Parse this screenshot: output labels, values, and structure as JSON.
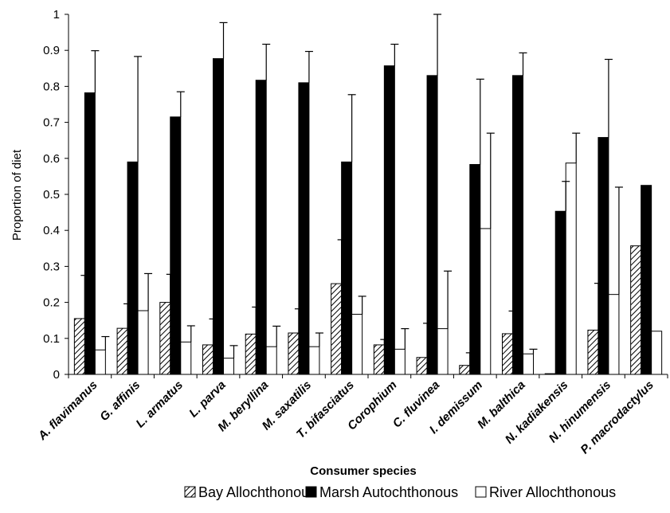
{
  "chart_data": {
    "type": "bar",
    "xlabel": "Consumer species",
    "ylabel": "Proportion of diet",
    "ylim": [
      0,
      1
    ],
    "yticks": [
      "0",
      "0.1",
      "0.2",
      "0.3",
      "0.4",
      "0.5",
      "0.6",
      "0.7",
      "0.8",
      "0.9",
      "1"
    ],
    "legend_position": "bottom",
    "grid": false,
    "categories": [
      "A. flavimanus",
      "G. affinis",
      "L. armatus",
      "L. parva",
      "M. beryllina",
      "M. saxatilis",
      "T. bifasciatus",
      "Corophium",
      "C. fluvinea",
      "I. demissum",
      "M. balthica",
      "N. kadiakensis",
      "N. hinumensis",
      "P. macrodactylus"
    ],
    "series": [
      {
        "name": "Bay Allochthonous",
        "pattern": "hatched",
        "color": "#000000",
        "values": [
          0.155,
          0.128,
          0.2,
          0.082,
          0.112,
          0.115,
          0.252,
          0.082,
          0.047,
          0.025,
          0.113,
          0.002,
          0.123,
          0.357
        ],
        "errors": [
          0.12,
          0.068,
          0.078,
          0.072,
          0.075,
          0.067,
          0.122,
          0.015,
          0.095,
          0.035,
          0.063,
          0.0,
          0.13,
          0.0
        ]
      },
      {
        "name": "Marsh Autochthonous",
        "pattern": "solid",
        "color": "#000000",
        "values": [
          0.782,
          0.59,
          0.715,
          0.877,
          0.817,
          0.81,
          0.59,
          0.857,
          0.83,
          0.583,
          0.83,
          0.453,
          0.658,
          0.525
        ],
        "errors": [
          0.117,
          0.293,
          0.07,
          0.1,
          0.1,
          0.087,
          0.187,
          0.06,
          0.19,
          0.237,
          0.063,
          0.083,
          0.217,
          0.0
        ]
      },
      {
        "name": "River Allochthonous",
        "pattern": "open",
        "color": "#ffffff",
        "values": [
          0.068,
          0.177,
          0.09,
          0.045,
          0.077,
          0.077,
          0.167,
          0.07,
          0.127,
          0.405,
          0.057,
          0.587,
          0.222,
          0.12
        ],
        "errors": [
          0.037,
          0.103,
          0.045,
          0.035,
          0.057,
          0.038,
          0.05,
          0.057,
          0.16,
          0.265,
          0.013,
          0.083,
          0.298,
          0.0
        ]
      }
    ]
  }
}
